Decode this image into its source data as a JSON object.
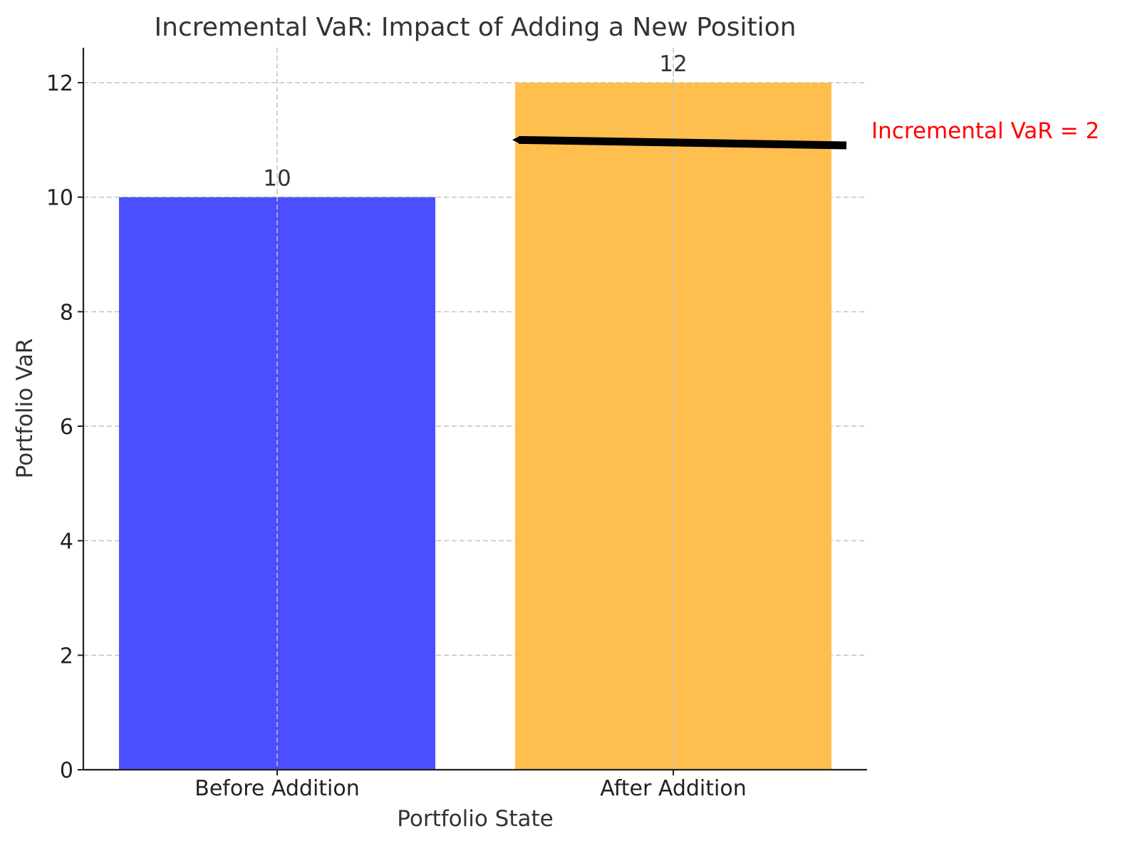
{
  "chart_data": {
    "type": "bar",
    "title": "Incremental VaR: Impact of Adding a New Position",
    "xlabel": "Portfolio State",
    "ylabel": "Portfolio VaR",
    "categories": [
      "Before Addition",
      "After Addition"
    ],
    "values": [
      10,
      12
    ],
    "data_labels": [
      "10",
      "12"
    ],
    "bar_colors": [
      "#4b4fff",
      "#ffbf4f"
    ],
    "ylim": [
      0,
      12.6
    ],
    "yticks": [
      0,
      2,
      4,
      6,
      8,
      10,
      12
    ],
    "grid": true,
    "annotation": {
      "text": "Incremental VaR = 2",
      "color": "#ff0000",
      "arrow_points_to": {
        "category": "After Addition",
        "side": "left",
        "y": 11
      }
    }
  }
}
